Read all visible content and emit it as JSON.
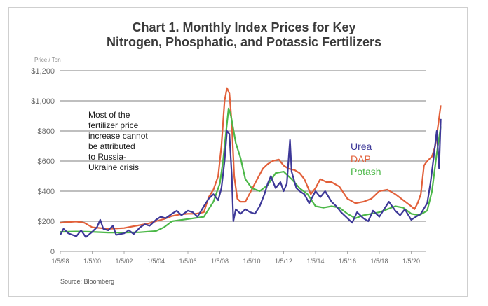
{
  "chart_data": {
    "type": "line",
    "title": [
      "Chart 1. Monthly Index Prices for Key",
      "Nitrogen, Phosphatic, and Potassic Fertilizers"
    ],
    "ylabel": "Price / Ton",
    "ylim": [
      0,
      1200
    ],
    "yticks": [
      {
        "value": 0,
        "label": "0"
      },
      {
        "value": 200,
        "label": "$200"
      },
      {
        "value": 400,
        "label": "$400"
      },
      {
        "value": 600,
        "label": "$600"
      },
      {
        "value": 800,
        "label": "$800"
      },
      {
        "value": 1000,
        "label": "$1,000"
      },
      {
        "value": 1200,
        "label": "$1,200"
      }
    ],
    "xlim": [
      1998.0,
      2020.9
    ],
    "xticks": [
      {
        "value": 1998,
        "label": "1/5/98"
      },
      {
        "value": 2000,
        "label": "1/5/00"
      },
      {
        "value": 2002,
        "label": "1/5/02"
      },
      {
        "value": 2004,
        "label": "1/5/04"
      },
      {
        "value": 2006,
        "label": "1/5/06"
      },
      {
        "value": 2008,
        "label": "1/5/08"
      },
      {
        "value": 2010,
        "label": "1/5/10"
      },
      {
        "value": 2012,
        "label": "1/5/12"
      },
      {
        "value": 2014,
        "label": "1/5/14"
      },
      {
        "value": 2016,
        "label": "1/5/16"
      },
      {
        "value": 2018,
        "label": "1/5/18"
      },
      {
        "value": 2020,
        "label": "1/5/20"
      }
    ],
    "annotation": [
      "Most of the",
      "fertilizer price",
      "increase cannot",
      "be attributed",
      "to Russia-",
      "Ukraine crisis"
    ],
    "source": "Source: Bloomberg",
    "series": [
      {
        "name": "DAP",
        "color": "#e2603a",
        "points": [
          [
            1998.0,
            190
          ],
          [
            1998.5,
            195
          ],
          [
            1999.0,
            198
          ],
          [
            1999.5,
            190
          ],
          [
            2000.0,
            160
          ],
          [
            2000.5,
            155
          ],
          [
            2001.0,
            150
          ],
          [
            2001.5,
            152
          ],
          [
            2002.0,
            155
          ],
          [
            2002.5,
            165
          ],
          [
            2003.0,
            175
          ],
          [
            2003.5,
            185
          ],
          [
            2004.0,
            200
          ],
          [
            2004.5,
            215
          ],
          [
            2005.0,
            235
          ],
          [
            2005.5,
            245
          ],
          [
            2006.0,
            250
          ],
          [
            2006.5,
            250
          ],
          [
            2007.0,
            260
          ],
          [
            2007.3,
            360
          ],
          [
            2007.6,
            410
          ],
          [
            2007.9,
            500
          ],
          [
            2008.1,
            700
          ],
          [
            2008.3,
            1000
          ],
          [
            2008.45,
            1085
          ],
          [
            2008.6,
            1050
          ],
          [
            2008.75,
            850
          ],
          [
            2008.9,
            500
          ],
          [
            2009.1,
            350
          ],
          [
            2009.3,
            330
          ],
          [
            2009.6,
            330
          ],
          [
            2010.0,
            410
          ],
          [
            2010.3,
            470
          ],
          [
            2010.7,
            550
          ],
          [
            2011.0,
            580
          ],
          [
            2011.3,
            600
          ],
          [
            2011.7,
            610
          ],
          [
            2012.0,
            570
          ],
          [
            2012.3,
            550
          ],
          [
            2012.7,
            540
          ],
          [
            2013.0,
            520
          ],
          [
            2013.3,
            480
          ],
          [
            2013.7,
            380
          ],
          [
            2014.0,
            420
          ],
          [
            2014.3,
            480
          ],
          [
            2014.7,
            460
          ],
          [
            2015.0,
            460
          ],
          [
            2015.5,
            430
          ],
          [
            2016.0,
            350
          ],
          [
            2016.5,
            320
          ],
          [
            2017.0,
            330
          ],
          [
            2017.5,
            350
          ],
          [
            2018.0,
            400
          ],
          [
            2018.5,
            410
          ],
          [
            2019.0,
            380
          ],
          [
            2019.5,
            340
          ],
          [
            2020.0,
            300
          ],
          [
            2020.2,
            280
          ],
          [
            2020.4,
            320
          ],
          [
            2020.6,
            380
          ],
          [
            2020.8,
            570
          ],
          [
            2021.0,
            600
          ],
          [
            2021.3,
            630
          ],
          [
            2021.5,
            700
          ],
          [
            2021.7,
            850
          ],
          [
            2021.85,
            970
          ]
        ]
      },
      {
        "name": "Potash",
        "color": "#4cb848",
        "points": [
          [
            1998.0,
            130
          ],
          [
            1999.0,
            132
          ],
          [
            2000.0,
            130
          ],
          [
            2001.0,
            125
          ],
          [
            2002.0,
            125
          ],
          [
            2003.0,
            127
          ],
          [
            2004.0,
            135
          ],
          [
            2004.5,
            160
          ],
          [
            2005.0,
            200
          ],
          [
            2006.0,
            215
          ],
          [
            2007.0,
            230
          ],
          [
            2007.3,
            280
          ],
          [
            2007.6,
            330
          ],
          [
            2008.0,
            450
          ],
          [
            2008.2,
            600
          ],
          [
            2008.4,
            800
          ],
          [
            2008.55,
            950
          ],
          [
            2008.7,
            900
          ],
          [
            2009.0,
            720
          ],
          [
            2009.3,
            620
          ],
          [
            2009.6,
            480
          ],
          [
            2010.0,
            420
          ],
          [
            2010.5,
            400
          ],
          [
            2011.0,
            440
          ],
          [
            2011.5,
            520
          ],
          [
            2012.0,
            530
          ],
          [
            2012.5,
            480
          ],
          [
            2013.0,
            420
          ],
          [
            2013.5,
            380
          ],
          [
            2014.0,
            300
          ],
          [
            2014.5,
            290
          ],
          [
            2015.0,
            300
          ],
          [
            2015.5,
            290
          ],
          [
            2016.0,
            250
          ],
          [
            2016.5,
            220
          ],
          [
            2017.0,
            240
          ],
          [
            2017.5,
            250
          ],
          [
            2018.0,
            260
          ],
          [
            2018.5,
            280
          ],
          [
            2019.0,
            300
          ],
          [
            2019.5,
            290
          ],
          [
            2020.0,
            250
          ],
          [
            2020.5,
            240
          ],
          [
            2021.0,
            270
          ],
          [
            2021.3,
            400
          ],
          [
            2021.6,
            650
          ],
          [
            2021.85,
            830
          ]
        ]
      },
      {
        "name": "Urea",
        "color": "#3d3898",
        "points": [
          [
            1998.0,
            110
          ],
          [
            1998.2,
            150
          ],
          [
            1998.5,
            120
          ],
          [
            1999.0,
            100
          ],
          [
            1999.3,
            140
          ],
          [
            1999.6,
            95
          ],
          [
            2000.0,
            130
          ],
          [
            2000.3,
            160
          ],
          [
            2000.5,
            210
          ],
          [
            2000.7,
            150
          ],
          [
            2001.0,
            140
          ],
          [
            2001.3,
            170
          ],
          [
            2001.5,
            110
          ],
          [
            2002.0,
            120
          ],
          [
            2002.3,
            140
          ],
          [
            2002.6,
            115
          ],
          [
            2003.0,
            160
          ],
          [
            2003.3,
            180
          ],
          [
            2003.6,
            170
          ],
          [
            2004.0,
            210
          ],
          [
            2004.3,
            230
          ],
          [
            2004.6,
            220
          ],
          [
            2005.0,
            250
          ],
          [
            2005.3,
            270
          ],
          [
            2005.6,
            240
          ],
          [
            2006.0,
            270
          ],
          [
            2006.3,
            260
          ],
          [
            2006.6,
            230
          ],
          [
            2007.0,
            300
          ],
          [
            2007.3,
            350
          ],
          [
            2007.6,
            380
          ],
          [
            2007.9,
            340
          ],
          [
            2008.1,
            420
          ],
          [
            2008.3,
            600
          ],
          [
            2008.45,
            800
          ],
          [
            2008.6,
            780
          ],
          [
            2008.75,
            500
          ],
          [
            2008.85,
            200
          ],
          [
            2009.0,
            280
          ],
          [
            2009.3,
            250
          ],
          [
            2009.6,
            280
          ],
          [
            2009.9,
            260
          ],
          [
            2010.2,
            250
          ],
          [
            2010.5,
            300
          ],
          [
            2010.8,
            380
          ],
          [
            2011.0,
            450
          ],
          [
            2011.2,
            500
          ],
          [
            2011.5,
            420
          ],
          [
            2011.8,
            460
          ],
          [
            2012.0,
            400
          ],
          [
            2012.2,
            450
          ],
          [
            2012.4,
            740
          ],
          [
            2012.5,
            530
          ],
          [
            2012.8,
            420
          ],
          [
            2013.0,
            400
          ],
          [
            2013.3,
            380
          ],
          [
            2013.6,
            320
          ],
          [
            2014.0,
            400
          ],
          [
            2014.3,
            360
          ],
          [
            2014.6,
            400
          ],
          [
            2015.0,
            330
          ],
          [
            2015.3,
            300
          ],
          [
            2015.6,
            260
          ],
          [
            2016.0,
            220
          ],
          [
            2016.3,
            190
          ],
          [
            2016.6,
            260
          ],
          [
            2017.0,
            220
          ],
          [
            2017.3,
            200
          ],
          [
            2017.6,
            270
          ],
          [
            2018.0,
            230
          ],
          [
            2018.3,
            280
          ],
          [
            2018.6,
            330
          ],
          [
            2019.0,
            270
          ],
          [
            2019.3,
            240
          ],
          [
            2019.6,
            280
          ],
          [
            2020.0,
            210
          ],
          [
            2020.3,
            230
          ],
          [
            2020.6,
            250
          ],
          [
            2021.0,
            320
          ],
          [
            2021.2,
            450
          ],
          [
            2021.4,
            620
          ],
          [
            2021.6,
            800
          ],
          [
            2021.75,
            550
          ],
          [
            2021.85,
            880
          ]
        ]
      }
    ]
  }
}
